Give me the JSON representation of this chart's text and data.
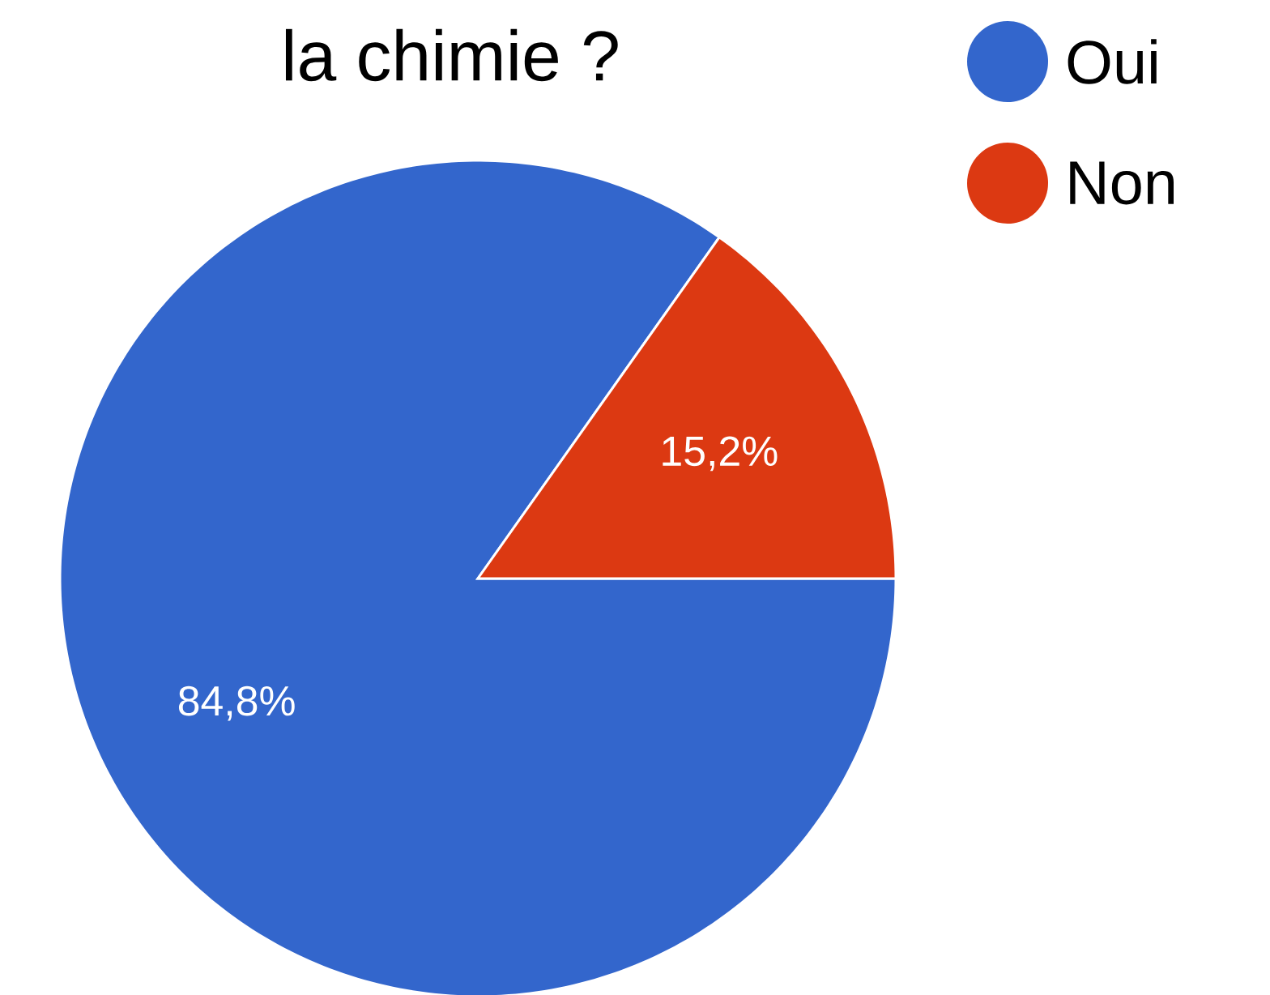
{
  "chart_data": {
    "type": "pie",
    "title": "la chimie ?",
    "categories": [
      "Oui",
      "Non"
    ],
    "values": [
      84.8,
      15.2
    ],
    "colors": [
      "#3366cc",
      "#dc3912"
    ],
    "value_labels": [
      "84,8%",
      "15,2%"
    ],
    "legend": "top right"
  }
}
